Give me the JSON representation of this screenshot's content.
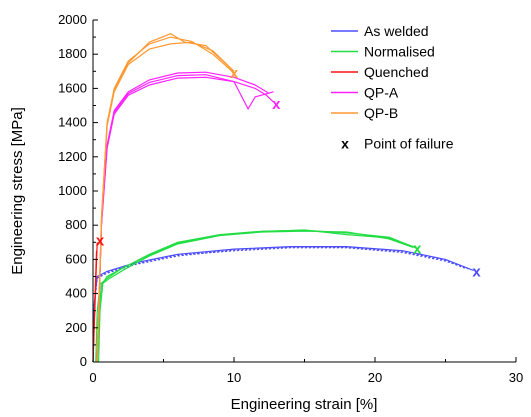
{
  "chart_data": {
    "type": "line",
    "xlabel": "Engineering strain [%]",
    "ylabel": "Engineering stress [MPa]",
    "xlim": [
      0,
      30
    ],
    "ylim": [
      0,
      2000
    ],
    "xticks": [
      0,
      10,
      20,
      30
    ],
    "yticks": [
      0,
      200,
      400,
      600,
      800,
      1000,
      1200,
      1400,
      1600,
      1800,
      2000
    ],
    "grid": false,
    "legend_position": "top-right",
    "series": [
      {
        "name": "As welded",
        "color": "#4d4dff",
        "curves": [
          [
            [
              0,
              0
            ],
            [
              0.1,
              350
            ],
            [
              0.3,
              500
            ],
            [
              1,
              530
            ],
            [
              3,
              580
            ],
            [
              6,
              630
            ],
            [
              10,
              660
            ],
            [
              14,
              675
            ],
            [
              18,
              675
            ],
            [
              22,
              650
            ],
            [
              25,
              600
            ],
            [
              27,
              535
            ]
          ],
          [
            [
              0,
              0
            ],
            [
              0.1,
              330
            ],
            [
              0.3,
              490
            ],
            [
              1,
              520
            ],
            [
              3,
              570
            ],
            [
              6,
              620
            ],
            [
              10,
              655
            ],
            [
              14,
              672
            ],
            [
              18,
              670
            ],
            [
              22,
              645
            ],
            [
              25,
              595
            ],
            [
              26.5,
              545
            ]
          ],
          [
            [
              0,
              0
            ],
            [
              0.1,
              340
            ],
            [
              0.3,
              495
            ],
            [
              1,
              525
            ],
            [
              3,
              575
            ],
            [
              6,
              625
            ],
            [
              10,
              650
            ],
            [
              14,
              668
            ],
            [
              18,
              668
            ],
            [
              22,
              640
            ],
            [
              25,
              590
            ],
            [
              26.8,
              540
            ]
          ]
        ],
        "failure_points": [
          [
            27.2,
            530
          ]
        ]
      },
      {
        "name": "Normalised",
        "color": "#22dd44",
        "curves": [
          [
            [
              0.3,
              0
            ],
            [
              0.4,
              280
            ],
            [
              0.6,
              450
            ],
            [
              1,
              500
            ],
            [
              2,
              545
            ],
            [
              4,
              630
            ],
            [
              6,
              700
            ],
            [
              9,
              745
            ],
            [
              12,
              765
            ],
            [
              15,
              770
            ],
            [
              18,
              755
            ],
            [
              21,
              730
            ],
            [
              23,
              665
            ]
          ],
          [
            [
              0.4,
              0
            ],
            [
              0.5,
              300
            ],
            [
              0.7,
              460
            ],
            [
              1.2,
              490
            ],
            [
              2.2,
              540
            ],
            [
              4,
              620
            ],
            [
              6,
              690
            ],
            [
              9,
              740
            ],
            [
              12,
              760
            ],
            [
              15,
              765
            ],
            [
              18,
              760
            ],
            [
              21,
              720
            ],
            [
              22.7,
              670
            ]
          ],
          [
            [
              0.2,
              0
            ],
            [
              0.3,
              290
            ],
            [
              0.5,
              455
            ],
            [
              1.1,
              495
            ],
            [
              2.1,
              550
            ],
            [
              4,
              625
            ],
            [
              6,
              695
            ],
            [
              9,
              742
            ],
            [
              12,
              763
            ],
            [
              15,
              772
            ],
            [
              18,
              745
            ],
            [
              21,
              725
            ],
            [
              22.9,
              668
            ]
          ]
        ],
        "failure_points": [
          [
            23,
            665
          ]
        ]
      },
      {
        "name": "Quenched",
        "color": "#ff1111",
        "curves": [
          [
            [
              0,
              0
            ],
            [
              0.3,
              700
            ]
          ],
          [
            [
              0,
              0
            ],
            [
              0.25,
              650
            ]
          ]
        ],
        "failure_points": [
          [
            0.5,
            710
          ]
        ]
      },
      {
        "name": "QP-A",
        "color": "#ff22ff",
        "curves": [
          [
            [
              0.3,
              0
            ],
            [
              0.6,
              800
            ],
            [
              1,
              1250
            ],
            [
              1.5,
              1450
            ],
            [
              2.5,
              1560
            ],
            [
              4,
              1620
            ],
            [
              6,
              1660
            ],
            [
              8,
              1665
            ],
            [
              10,
              1640
            ],
            [
              11.5,
              1600
            ],
            [
              12.3,
              1560
            ],
            [
              12.8,
              1520
            ]
          ],
          [
            [
              0.3,
              0
            ],
            [
              0.6,
              820
            ],
            [
              1,
              1270
            ],
            [
              1.5,
              1470
            ],
            [
              2.5,
              1580
            ],
            [
              4,
              1650
            ],
            [
              6,
              1690
            ],
            [
              8,
              1695
            ],
            [
              10,
              1665
            ],
            [
              11.5,
              1620
            ],
            [
              12.5,
              1570
            ]
          ],
          [
            [
              0.3,
              0
            ],
            [
              0.6,
              810
            ],
            [
              1,
              1260
            ],
            [
              1.5,
              1460
            ],
            [
              2.5,
              1570
            ],
            [
              4,
              1635
            ],
            [
              6,
              1675
            ],
            [
              8,
              1680
            ],
            [
              10,
              1640
            ],
            [
              11,
              1480
            ],
            [
              11.5,
              1550
            ],
            [
              12.8,
              1580
            ]
          ]
        ],
        "failure_points": [
          [
            13,
            1510
          ]
        ]
      },
      {
        "name": "QP-B",
        "color": "#ff9933",
        "curves": [
          [
            [
              0.3,
              0
            ],
            [
              0.6,
              850
            ],
            [
              1,
              1400
            ],
            [
              1.5,
              1600
            ],
            [
              2.5,
              1760
            ],
            [
              4,
              1860
            ],
            [
              5.5,
              1900
            ],
            [
              7,
              1875
            ],
            [
              8.5,
              1800
            ],
            [
              10,
              1690
            ]
          ],
          [
            [
              0.3,
              0
            ],
            [
              0.6,
              830
            ],
            [
              1,
              1380
            ],
            [
              1.5,
              1580
            ],
            [
              2.5,
              1740
            ],
            [
              4,
              1830
            ],
            [
              5.5,
              1860
            ],
            [
              7,
              1870
            ],
            [
              8.5,
              1820
            ],
            [
              10,
              1700
            ]
          ],
          [
            [
              0.3,
              0
            ],
            [
              0.6,
              840
            ],
            [
              1,
              1390
            ],
            [
              1.5,
              1590
            ],
            [
              2.5,
              1750
            ],
            [
              4,
              1870
            ],
            [
              5.5,
              1920
            ],
            [
              6.5,
              1870
            ],
            [
              8,
              1850
            ],
            [
              10,
              1700
            ]
          ]
        ],
        "failure_points": [
          [
            10,
            1690
          ]
        ]
      }
    ],
    "failure_marker": {
      "symbol": "x",
      "label": "Point of failure"
    }
  }
}
